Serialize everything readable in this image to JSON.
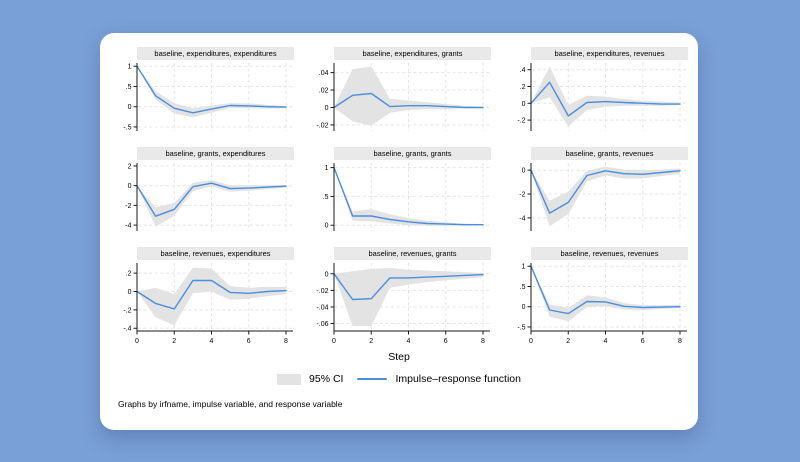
{
  "colors": {
    "background": "#7aa0d8",
    "card": "#ffffff",
    "irf_line": "#4a8ede",
    "ci_fill": "#e3e3e3",
    "panel_title_bg": "#e9e9e9",
    "gridline": "#e4e4e4",
    "axis": "#1a1a1a"
  },
  "legend": {
    "ci_label": "95% CI",
    "irf_label": "Impulse–response function"
  },
  "footer": {
    "xlabel": "Step",
    "note": "Graphs by irfname, impulse variable, and response variable"
  },
  "chart_data": [
    {
      "type": "area",
      "title": "baseline, expenditures, expenditures",
      "x": [
        0,
        1,
        2,
        3,
        4,
        5,
        6,
        7,
        8
      ],
      "irf": [
        1,
        0.27,
        -0.04,
        -0.15,
        -0.06,
        0.03,
        0.02,
        0,
        -0.01
      ],
      "ci_lower": [
        1,
        0.18,
        -0.17,
        -0.26,
        -0.15,
        -0.03,
        -0.04,
        -0.05,
        -0.04
      ],
      "ci_upper": [
        1,
        0.38,
        0.09,
        -0.04,
        0.03,
        0.09,
        0.08,
        0.05,
        0.02
      ],
      "ylim": [
        -0.6,
        1.08
      ],
      "ytick_values": [
        1,
        0.5,
        0,
        -0.5
      ],
      "ytick_labels": [
        "1",
        ".5",
        "0",
        "-.5"
      ],
      "grid_x": [
        2,
        4,
        6,
        8
      ],
      "xtick_values": [
        0,
        2,
        4,
        6,
        8
      ],
      "xtick_labels": [
        "0",
        "2",
        "4",
        "6",
        "8"
      ],
      "show_xticklabels": false
    },
    {
      "type": "area",
      "title": "baseline, expenditures, grants",
      "x": [
        0,
        1,
        2,
        3,
        4,
        5,
        6,
        7,
        8
      ],
      "irf": [
        0,
        0.014,
        0.016,
        0.001,
        0.002,
        0.002,
        0.001,
        0,
        0
      ],
      "ci_lower": [
        0,
        -0.016,
        -0.021,
        -0.006,
        -0.003,
        -0.002,
        -0.002,
        -0.001,
        -0.001
      ],
      "ci_upper": [
        0,
        0.044,
        0.047,
        0.01,
        0.008,
        0.006,
        0.004,
        0.002,
        0.001
      ],
      "ylim": [
        -0.027,
        0.051
      ],
      "ytick_values": [
        0.04,
        0.02,
        0,
        -0.02
      ],
      "ytick_labels": [
        ".04",
        ".02",
        "0",
        "-.02"
      ],
      "grid_x": [
        2,
        4,
        6,
        8
      ],
      "xtick_values": [
        0,
        2,
        4,
        6,
        8
      ],
      "xtick_labels": [
        "0",
        "2",
        "4",
        "6",
        "8"
      ],
      "show_xticklabels": false
    },
    {
      "type": "area",
      "title": "baseline, expenditures, revenues",
      "x": [
        0,
        1,
        2,
        3,
        4,
        5,
        6,
        7,
        8
      ],
      "irf": [
        0,
        0.25,
        -0.15,
        0.01,
        0.02,
        0.01,
        0,
        -0.01,
        -0.01
      ],
      "ci_lower": [
        0,
        0.07,
        -0.28,
        -0.08,
        -0.04,
        -0.03,
        -0.03,
        -0.03,
        -0.02
      ],
      "ci_upper": [
        0,
        0.44,
        -0.02,
        0.09,
        0.08,
        0.05,
        0.03,
        0.02,
        0.01
      ],
      "ylim": [
        -0.33,
        0.48
      ],
      "ytick_values": [
        0.4,
        0.2,
        0,
        -0.2
      ],
      "ytick_labels": [
        ".4",
        ".2",
        "0",
        "-.2"
      ],
      "grid_x": [
        2,
        4,
        6,
        8
      ],
      "xtick_values": [
        0,
        2,
        4,
        6,
        8
      ],
      "xtick_labels": [
        "0",
        "2",
        "4",
        "6",
        "8"
      ],
      "show_xticklabels": false
    },
    {
      "type": "area",
      "title": "baseline, grants, expenditures",
      "x": [
        0,
        1,
        2,
        3,
        4,
        5,
        6,
        7,
        8
      ],
      "irf": [
        0,
        -3.1,
        -2.4,
        -0.1,
        0.25,
        -0.3,
        -0.25,
        -0.15,
        -0.05
      ],
      "ci_lower": [
        0,
        -4.15,
        -3.05,
        -0.55,
        -0.05,
        -0.6,
        -0.5,
        -0.35,
        -0.2
      ],
      "ci_upper": [
        0,
        -2.2,
        -1.75,
        0.3,
        0.55,
        0.05,
        0.05,
        0.05,
        0.1
      ],
      "ylim": [
        -4.6,
        2.3
      ],
      "ytick_values": [
        2,
        0,
        -2,
        -4
      ],
      "ytick_labels": [
        "2",
        "0",
        "-2",
        "-4"
      ],
      "grid_x": [
        2,
        4,
        6,
        8
      ],
      "xtick_values": [
        0,
        2,
        4,
        6,
        8
      ],
      "xtick_labels": [
        "0",
        "2",
        "4",
        "6",
        "8"
      ],
      "show_xticklabels": false
    },
    {
      "type": "area",
      "title": "baseline, grants, grants",
      "x": [
        0,
        1,
        2,
        3,
        4,
        5,
        6,
        7,
        8
      ],
      "irf": [
        1,
        0.16,
        0.16,
        0.1,
        0.06,
        0.03,
        0.02,
        0.01,
        0.01
      ],
      "ci_lower": [
        1,
        0.08,
        0.07,
        0.03,
        0,
        -0.01,
        -0.01,
        -0.01,
        0
      ],
      "ci_upper": [
        1,
        0.24,
        0.28,
        0.19,
        0.12,
        0.08,
        0.05,
        0.03,
        0.02
      ],
      "ylim": [
        -0.1,
        1.08
      ],
      "ytick_values": [
        1,
        0.5,
        0
      ],
      "ytick_labels": [
        "1",
        ".5",
        "0"
      ],
      "grid_x": [
        2,
        4,
        6,
        8
      ],
      "xtick_values": [
        0,
        2,
        4,
        6,
        8
      ],
      "xtick_labels": [
        "0",
        "2",
        "4",
        "6",
        "8"
      ],
      "show_xticklabels": false
    },
    {
      "type": "area",
      "title": "baseline, grants, revenues",
      "x": [
        0,
        1,
        2,
        3,
        4,
        5,
        6,
        7,
        8
      ],
      "irf": [
        0,
        -3.6,
        -2.7,
        -0.45,
        -0.05,
        -0.3,
        -0.35,
        -0.2,
        -0.05
      ],
      "ci_lower": [
        0,
        -4.7,
        -3.7,
        -0.95,
        -0.45,
        -0.7,
        -0.7,
        -0.5,
        -0.3
      ],
      "ci_upper": [
        0,
        -2.55,
        -1.8,
        -0.05,
        0.3,
        0.05,
        0,
        0.05,
        0.15
      ],
      "ylim": [
        -5.1,
        0.6
      ],
      "ytick_values": [
        0,
        -2,
        -4
      ],
      "ytick_labels": [
        "0",
        "-2",
        "-4"
      ],
      "grid_x": [
        2,
        4,
        6,
        8
      ],
      "xtick_values": [
        0,
        2,
        4,
        6,
        8
      ],
      "xtick_labels": [
        "0",
        "2",
        "4",
        "6",
        "8"
      ],
      "show_xticklabels": false
    },
    {
      "type": "area",
      "title": "baseline, revenues, expenditures",
      "x": [
        0,
        1,
        2,
        3,
        4,
        5,
        6,
        7,
        8
      ],
      "irf": [
        0,
        -0.13,
        -0.19,
        0.12,
        0.12,
        -0.01,
        -0.02,
        0,
        0.01
      ],
      "ci_lower": [
        0,
        -0.28,
        -0.37,
        -0.02,
        0,
        -0.09,
        -0.08,
        -0.05,
        -0.03
      ],
      "ci_upper": [
        0,
        0.04,
        -0.03,
        0.26,
        0.25,
        0.06,
        0.04,
        0.05,
        0.05
      ],
      "ylim": [
        -0.43,
        0.31
      ],
      "ytick_values": [
        0.2,
        0,
        -0.2,
        -0.4
      ],
      "ytick_labels": [
        ".2",
        "0",
        "-.2",
        "-.4"
      ],
      "grid_x": [
        2,
        4,
        6,
        8
      ],
      "xtick_values": [
        0,
        2,
        4,
        6,
        8
      ],
      "xtick_labels": [
        "0",
        "2",
        "4",
        "6",
        "8"
      ],
      "show_xticklabels": true
    },
    {
      "type": "area",
      "title": "baseline, revenues, grants",
      "x": [
        0,
        1,
        2,
        3,
        4,
        5,
        6,
        7,
        8
      ],
      "irf": [
        0,
        -0.031,
        -0.03,
        -0.005,
        -0.005,
        -0.004,
        -0.003,
        -0.002,
        -0.001
      ],
      "ci_lower": [
        0,
        -0.063,
        -0.063,
        -0.017,
        -0.013,
        -0.01,
        -0.008,
        -0.006,
        -0.004
      ],
      "ci_upper": [
        0,
        0.003,
        0.006,
        0.007,
        0.005,
        0.004,
        0.003,
        0.002,
        0.001
      ],
      "ylim": [
        -0.069,
        0.013
      ],
      "ytick_values": [
        0,
        -0.02,
        -0.04,
        -0.06
      ],
      "ytick_labels": [
        "0",
        "-.02",
        "-.04",
        "-.06"
      ],
      "grid_x": [
        2,
        4,
        6,
        8
      ],
      "xtick_values": [
        0,
        2,
        4,
        6,
        8
      ],
      "xtick_labels": [
        "0",
        "2",
        "4",
        "6",
        "8"
      ],
      "show_xticklabels": true
    },
    {
      "type": "area",
      "title": "baseline, revenues, revenues",
      "x": [
        0,
        1,
        2,
        3,
        4,
        5,
        6,
        7,
        8
      ],
      "irf": [
        1,
        -0.08,
        -0.17,
        0.13,
        0.12,
        0.01,
        -0.02,
        -0.01,
        0
      ],
      "ci_lower": [
        1,
        -0.25,
        -0.36,
        -0.01,
        0.01,
        -0.07,
        -0.08,
        -0.06,
        -0.04
      ],
      "ci_upper": [
        1,
        0.06,
        -0.03,
        0.28,
        0.23,
        0.09,
        0.04,
        0.04,
        0.04
      ],
      "ylim": [
        -0.6,
        1.08
      ],
      "ytick_values": [
        1,
        0.5,
        0,
        -0.5
      ],
      "ytick_labels": [
        "1",
        ".5",
        "0",
        "-.5"
      ],
      "grid_x": [
        2,
        4,
        6,
        8
      ],
      "xtick_values": [
        0,
        2,
        4,
        6,
        8
      ],
      "xtick_labels": [
        "0",
        "2",
        "4",
        "6",
        "8"
      ],
      "show_xticklabels": true
    }
  ]
}
